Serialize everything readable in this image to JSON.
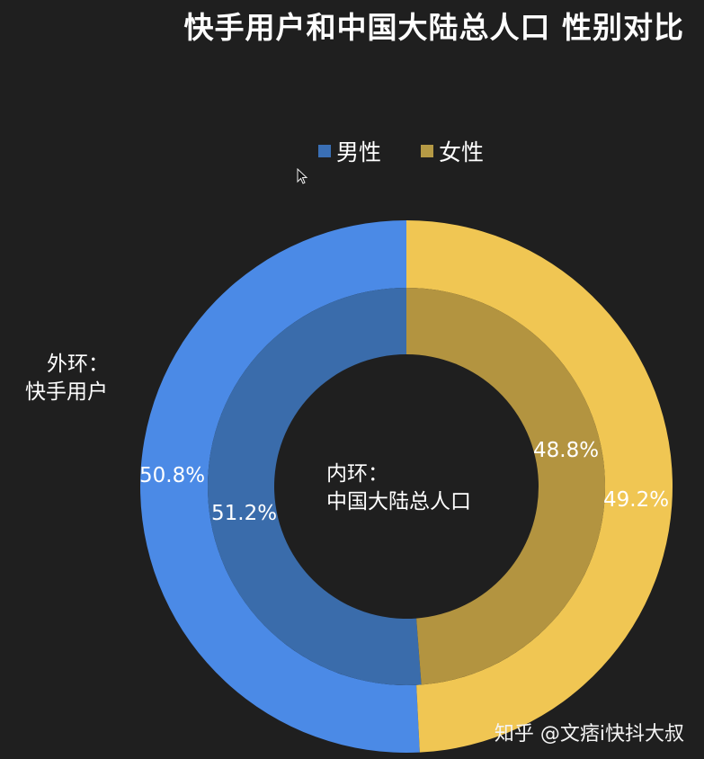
{
  "title": "快手用户和中国大陆总人口  性别对比",
  "legend": [
    {
      "label": "男性",
      "color": "#3a6fb5"
    },
    {
      "label": "女性",
      "color": "#b59a45"
    }
  ],
  "annotations": {
    "outer_label_line1": "外环：",
    "outer_label_line2": "快手用户",
    "inner_label_line1": "内环：",
    "inner_label_line2": "中国大陆总人口"
  },
  "labels": {
    "outer_male": "50.8%",
    "outer_female": "49.2%",
    "inner_male": "51.2%",
    "inner_female": "48.8%"
  },
  "watermark": "知乎 @文痞i快抖大叔",
  "colors": {
    "outer_male": "#4b8ae6",
    "outer_female": "#f0c653",
    "inner_male": "#3a6cab",
    "inner_female": "#b39440",
    "background": "#1f1f1f"
  },
  "chart_data": {
    "type": "pie",
    "subtype": "donut-nested",
    "title": "快手用户和中国大陆总人口  性别对比",
    "categories": [
      "男性",
      "女性"
    ],
    "series": [
      {
        "name": "外环：快手用户",
        "ring": "outer",
        "values": [
          50.8,
          49.2
        ]
      },
      {
        "name": "内环：中国大陆总人口",
        "ring": "inner",
        "values": [
          51.2,
          48.8
        ]
      }
    ],
    "legend_position": "top",
    "unit": "%"
  }
}
